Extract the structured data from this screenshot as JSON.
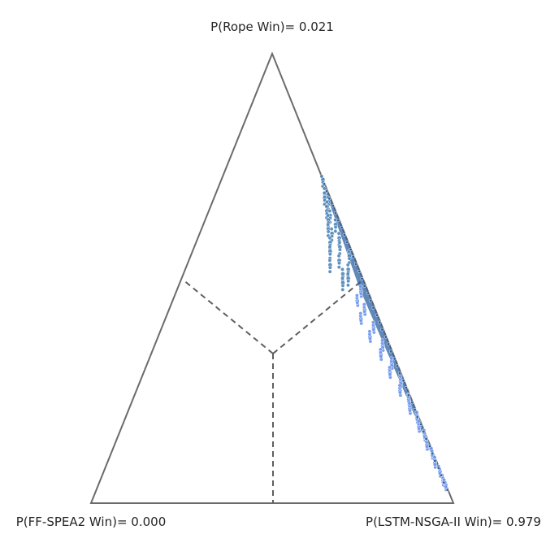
{
  "chart_data": {
    "type": "scatter",
    "subtype": "ternary-simplex",
    "vertex_labels": {
      "top": "P(Rope Win)= 0.021",
      "bottom_left": "P(FF-SPEA2 Win)= 0.000",
      "bottom_right": "P(LSTM-NSGA-II Win)= 0.979"
    },
    "region_boundaries": "dashed",
    "colors": {
      "edge": "#6b6b6b",
      "divider": "#5f5f5f",
      "cluster_upper": "#4f86b8",
      "cluster_lower": "#6c95ec",
      "cluster_dense": "#245a9c",
      "text": "#262626"
    },
    "series": [
      {
        "values": [
          {
            "rope": 0.72,
            "left": 0.0,
            "right": 0.28
          },
          {
            "rope": 0.69,
            "left": 0.01,
            "right": 0.3
          },
          {
            "rope": 0.68,
            "left": 0.015,
            "right": 0.305
          },
          {
            "rope": 0.67,
            "left": 0.01,
            "right": 0.32
          },
          {
            "rope": 0.66,
            "left": 0.018,
            "right": 0.322
          },
          {
            "rope": 0.65,
            "left": 0.024,
            "right": 0.326
          },
          {
            "rope": 0.64,
            "left": 0.02,
            "right": 0.34
          },
          {
            "rope": 0.63,
            "left": 0.03,
            "right": 0.34
          },
          {
            "rope": 0.62,
            "left": 0.015,
            "right": 0.365
          },
          {
            "rope": 0.61,
            "left": 0.04,
            "right": 0.35
          },
          {
            "rope": 0.6,
            "left": 0.035,
            "right": 0.365
          },
          {
            "rope": 0.59,
            "left": 0.02,
            "right": 0.39
          },
          {
            "rope": 0.58,
            "left": 0.05,
            "right": 0.37
          },
          {
            "rope": 0.57,
            "left": 0.028,
            "right": 0.402
          },
          {
            "rope": 0.56,
            "left": 0.06,
            "right": 0.38
          },
          {
            "rope": 0.55,
            "left": 0.012,
            "right": 0.438
          },
          {
            "rope": 0.54,
            "left": 0.045,
            "right": 0.415
          },
          {
            "rope": 0.53,
            "left": 0.075,
            "right": 0.395
          },
          {
            "rope": 0.52,
            "left": 0.03,
            "right": 0.45
          },
          {
            "rope": 0.51,
            "left": 0.05,
            "right": 0.44
          },
          {
            "rope": 0.5,
            "left": 0.04,
            "right": 0.46
          },
          {
            "rope": 0.49,
            "left": 0.06,
            "right": 0.45
          }
        ]
      },
      {
        "values": [
          {
            "rope": 0.47,
            "left": 0.02,
            "right": 0.51
          },
          {
            "rope": 0.45,
            "left": 0.04,
            "right": 0.51
          },
          {
            "rope": 0.43,
            "left": 0.03,
            "right": 0.54
          },
          {
            "rope": 0.41,
            "left": 0.05,
            "right": 0.54
          },
          {
            "rope": 0.39,
            "left": 0.025,
            "right": 0.585
          },
          {
            "rope": 0.37,
            "left": 0.045,
            "right": 0.585
          },
          {
            "rope": 0.35,
            "left": 0.02,
            "right": 0.63
          },
          {
            "rope": 0.33,
            "left": 0.035,
            "right": 0.635
          },
          {
            "rope": 0.31,
            "left": 0.015,
            "right": 0.675
          },
          {
            "rope": 0.29,
            "left": 0.03,
            "right": 0.68
          },
          {
            "rope": 0.27,
            "left": 0.01,
            "right": 0.72
          },
          {
            "rope": 0.25,
            "left": 0.022,
            "right": 0.728
          },
          {
            "rope": 0.23,
            "left": 0.008,
            "right": 0.762
          },
          {
            "rope": 0.21,
            "left": 0.015,
            "right": 0.775
          },
          {
            "rope": 0.19,
            "left": 0.005,
            "right": 0.805
          },
          {
            "rope": 0.17,
            "left": 0.01,
            "right": 0.82
          },
          {
            "rope": 0.15,
            "left": 0.004,
            "right": 0.846
          },
          {
            "rope": 0.13,
            "left": 0.008,
            "right": 0.862
          },
          {
            "rope": 0.11,
            "left": 0.003,
            "right": 0.887
          },
          {
            "rope": 0.09,
            "left": 0.006,
            "right": 0.904
          },
          {
            "rope": 0.07,
            "left": 0.002,
            "right": 0.928
          },
          {
            "rope": 0.05,
            "left": 0.003,
            "right": 0.947
          },
          {
            "rope": 0.04,
            "left": 0.001,
            "right": 0.959
          }
        ]
      }
    ]
  }
}
